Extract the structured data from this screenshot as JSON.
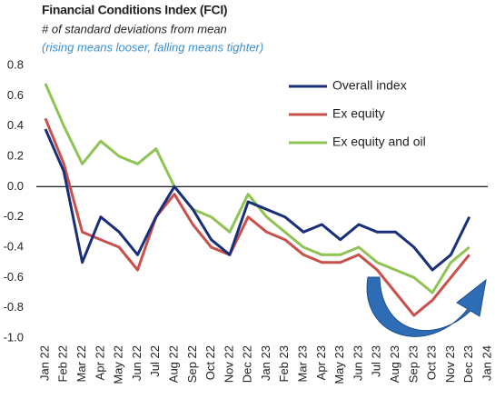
{
  "chart_data": {
    "type": "line",
    "title": "Financial Conditions Index (FCI)",
    "subtitle": "# of standard deviations from mean",
    "note": "(rising means looser, falling means tighter)",
    "categories": [
      "Jan 22",
      "Feb 22",
      "Mar 22",
      "Apr 22",
      "May 22",
      "Jun 22",
      "Jul 22",
      "Aug 22",
      "Sep 22",
      "Oct 22",
      "Nov 22",
      "Dec 22",
      "Jan 23",
      "Feb 23",
      "Mar 23",
      "Apr 23",
      "May 23",
      "Jun 23",
      "Jul 23",
      "Aug 23",
      "Sep 23",
      "Oct 23",
      "Nov 23",
      "Dec 23",
      "Jan 24"
    ],
    "series": [
      {
        "name": "Overall index",
        "color": "#1a2f7a",
        "values": [
          0.38,
          0.1,
          -0.5,
          -0.2,
          -0.3,
          -0.45,
          -0.2,
          0.0,
          -0.15,
          -0.35,
          -0.45,
          -0.1,
          -0.15,
          -0.2,
          -0.3,
          -0.25,
          -0.35,
          -0.25,
          -0.3,
          -0.3,
          -0.4,
          -0.55,
          -0.45,
          -0.2,
          null
        ]
      },
      {
        "name": "Ex equity",
        "color": "#c9504a",
        "values": [
          0.45,
          0.15,
          -0.3,
          -0.35,
          -0.4,
          -0.55,
          -0.2,
          -0.05,
          -0.25,
          -0.4,
          -0.45,
          -0.2,
          -0.3,
          -0.35,
          -0.45,
          -0.5,
          -0.5,
          -0.45,
          -0.55,
          -0.7,
          -0.85,
          -0.75,
          -0.6,
          -0.45,
          null
        ]
      },
      {
        "name": "Ex equity and oil",
        "color": "#8fc454",
        "values": [
          0.68,
          0.4,
          0.15,
          0.3,
          0.2,
          0.15,
          0.25,
          0.0,
          -0.15,
          -0.2,
          -0.3,
          -0.05,
          -0.2,
          -0.3,
          -0.4,
          -0.45,
          -0.45,
          -0.4,
          -0.5,
          -0.55,
          -0.6,
          -0.7,
          -0.5,
          -0.4,
          null
        ]
      }
    ],
    "ylim": [
      -1,
      0.8
    ],
    "yticks": [
      0.8,
      0.6,
      0.4,
      0.2,
      {
        "value": 0,
        "label": "0.0"
      },
      -0.2,
      -0.4,
      -0.6,
      -0.8,
      {
        "value": -1,
        "label": "-1.0"
      }
    ],
    "grid": false,
    "legend": "top-right"
  }
}
